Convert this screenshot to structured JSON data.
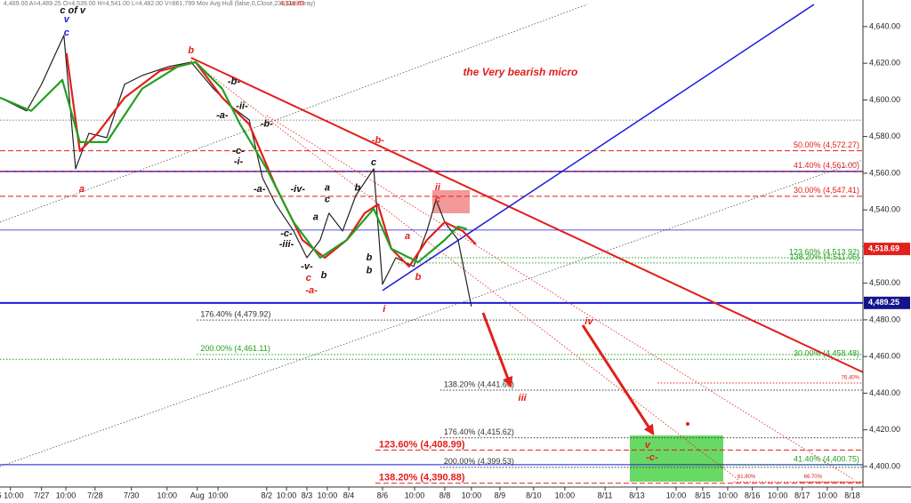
{
  "chart_data": {
    "type": "line",
    "header": "4,489.00  A=4,489.25  O=4,539.00  H=4,541.00  L=4,482.00  V=861,799  Mov Avg Hull (false,0,Close,233,DarkGray)",
    "header_price": "4,518.69",
    "xlim": [
      -0.27,
      26.33
    ],
    "ylim": [
      4388.8,
      4654.5
    ],
    "xticks": [
      {
        "value": 0.05,
        "label": "5 10:00"
      },
      {
        "value": 1.01,
        "label": "7/27"
      },
      {
        "value": 1.76,
        "label": "10:00"
      },
      {
        "value": 2.66,
        "label": "7/28"
      },
      {
        "value": 3.78,
        "label": "7/30"
      },
      {
        "value": 4.88,
        "label": "10:00"
      },
      {
        "value": 5.81,
        "label": "Aug"
      },
      {
        "value": 6.45,
        "label": "10:00"
      },
      {
        "value": 7.95,
        "label": "8/2"
      },
      {
        "value": 8.56,
        "label": "10:00"
      },
      {
        "value": 9.19,
        "label": "8/3"
      },
      {
        "value": 9.82,
        "label": "10:00"
      },
      {
        "value": 10.48,
        "label": "8/4"
      },
      {
        "value": 11.52,
        "label": "8/6"
      },
      {
        "value": 12.51,
        "label": "10:00"
      },
      {
        "value": 13.44,
        "label": "8/8"
      },
      {
        "value": 14.26,
        "label": "10:00"
      },
      {
        "value": 15.14,
        "label": "8/9"
      },
      {
        "value": 16.18,
        "label": "8/10"
      },
      {
        "value": 17.14,
        "label": "10:00"
      },
      {
        "value": 18.38,
        "label": "8/11"
      },
      {
        "value": 19.36,
        "label": "8/13"
      },
      {
        "value": 20.57,
        "label": "10:00"
      },
      {
        "value": 21.39,
        "label": "8/15"
      },
      {
        "value": 22.16,
        "label": "10:00"
      },
      {
        "value": 22.92,
        "label": "8/16"
      },
      {
        "value": 23.7,
        "label": "10:00"
      },
      {
        "value": 24.46,
        "label": "8/17"
      },
      {
        "value": 25.23,
        "label": "10:00"
      },
      {
        "value": 26.0,
        "label": "8/18"
      }
    ],
    "yticks": [
      {
        "value": 4400,
        "label": "4,400.00"
      },
      {
        "value": 4420,
        "label": "4,420.00"
      },
      {
        "value": 4440,
        "label": "4,440.00"
      },
      {
        "value": 4460,
        "label": "4,460.00"
      },
      {
        "value": 4480,
        "label": "4,480.00"
      },
      {
        "value": 4500,
        "label": "4,500.00"
      },
      {
        "value": 4520,
        "label": "4,520.00"
      },
      {
        "value": 4540,
        "label": "4,540.00"
      },
      {
        "value": 4560,
        "label": "4,560.00"
      },
      {
        "value": 4580,
        "label": "4,580.00"
      },
      {
        "value": 4600,
        "label": "4,600.00"
      },
      {
        "value": 4620,
        "label": "4,620.00"
      },
      {
        "value": 4640,
        "label": "4,640.00"
      }
    ],
    "series": [
      {
        "color": "#222222",
        "width": 1.2,
        "x": [
          -0.27,
          0.55,
          1.01,
          1.7,
          2.06,
          2.47,
          3.02,
          3.57,
          4.11,
          4.94,
          5.62,
          6.31,
          6.86,
          7.41,
          7.82,
          8.23,
          8.78,
          9.19,
          9.6,
          9.87,
          10.29,
          10.7,
          11.25,
          11.52,
          11.93,
          12.48,
          12.89,
          13.17,
          13.44,
          13.85,
          14.26
        ],
        "values": [
          4601.2,
          4594.0,
          4608.5,
          4635.2,
          4562.4,
          4581.8,
          4579.4,
          4608.5,
          4613.3,
          4618.2,
          4620.6,
          4606.1,
          4596.4,
          4589.1,
          4557.6,
          4543.0,
          4528.5,
          4513.9,
          4523.6,
          4538.2,
          4528.5,
          4547.9,
          4562.4,
          4499.4,
          4513.9,
          4509.1,
          4528.5,
          4545.5,
          4533.3,
          4523.6,
          4487.3
        ]
      },
      {
        "color": "#e0201c",
        "width": 2.2,
        "x": [
          1.78,
          2.19,
          2.74,
          3.57,
          4.66,
          5.76,
          6.58,
          7.41,
          8.23,
          9.05,
          9.74,
          10.42,
          10.97,
          11.38,
          11.79,
          12.34,
          12.89,
          13.44,
          13.99,
          14.4
        ],
        "values": [
          4625.5,
          4572.1,
          4581.8,
          4601.2,
          4615.8,
          4620.6,
          4601.2,
          4586.7,
          4552.7,
          4523.6,
          4513.9,
          4523.6,
          4538.2,
          4543.0,
          4518.8,
          4509.1,
          4523.6,
          4533.3,
          4528.5,
          4521.2
        ]
      },
      {
        "color": "#22a020",
        "width": 2.2,
        "x": [
          -0.27,
          0.69,
          1.65,
          2.19,
          3.02,
          4.11,
          5.21,
          5.76,
          6.58,
          7.13,
          7.95,
          8.78,
          9.6,
          10.42,
          11.25,
          11.79,
          12.62,
          13.44,
          13.85,
          14.12
        ],
        "values": [
          4601.2,
          4594.0,
          4610.9,
          4577.0,
          4577.0,
          4606.1,
          4618.2,
          4620.6,
          4606.1,
          4586.7,
          4562.4,
          4533.3,
          4513.9,
          4523.6,
          4540.6,
          4518.8,
          4511.5,
          4523.6,
          4530.9,
          4529.5
        ]
      }
    ],
    "trendlines": [
      {
        "color": "#e0201c",
        "width": 2,
        "style": "solid",
        "x": [
          5.62,
          26.33
        ],
        "y": [
          4623.0,
          4451.4
        ]
      },
      {
        "color": "#1a1adb",
        "width": 1.5,
        "style": "solid",
        "x": [
          11.52,
          24.82
        ],
        "y": [
          4496.0,
          4652.1
        ]
      },
      {
        "color": "#555555",
        "width": 0.8,
        "style": "dotted",
        "x": [
          -0.27,
          17.83
        ],
        "y": [
          4533.3,
          4652.1
        ]
      },
      {
        "color": "#555555",
        "width": 0.8,
        "style": "dotted",
        "x": [
          -0.27,
          26.33
        ],
        "y": [
          4400.0,
          4567.3
        ]
      },
      {
        "color": "#e0201c",
        "width": 0.8,
        "style": "dotted",
        "x": [
          5.62,
          22.49
        ],
        "y": [
          4621.6,
          4392.7
        ]
      },
      {
        "color": "#e0201c",
        "width": 0.8,
        "style": "dotted",
        "x": [
          7.95,
          26.06
        ],
        "y": [
          4591.5,
          4392.7
        ]
      }
    ],
    "hlines": [
      {
        "value": 4589.0,
        "color": "#555555",
        "width": 0.8,
        "style": "dotted"
      },
      {
        "value": 4561.0,
        "color": "#1a1adb",
        "width": 1.5,
        "style": "solid"
      },
      {
        "value": 4529.0,
        "color": "#1a1adb",
        "width": 0.8,
        "style": "solid"
      },
      {
        "value": 4489.25,
        "color": "#1a1adb",
        "width": 2,
        "style": "solid"
      },
      {
        "value": 4401.0,
        "color": "#1a1adb",
        "width": 1,
        "style": "solid"
      }
    ],
    "levels": [
      {
        "label": "50.00% (4,572.27)",
        "value": 4572.27,
        "color": "#e0201c",
        "style": "dashed",
        "label_at": "right",
        "from": -0.27
      },
      {
        "label": "41.40% (4,561.00)",
        "value": 4561.0,
        "color": "#e0201c",
        "style": "dashed",
        "label_at": "right",
        "from": -0.27
      },
      {
        "label": "30.00% (4,547.41)",
        "value": 4547.41,
        "color": "#e0201c",
        "style": "dashed",
        "label_at": "right",
        "from": -0.27
      },
      {
        "label": "123.60% (4,513.92)",
        "value": 4513.92,
        "color": "#22a020",
        "style": "dotted",
        "label_at": "right",
        "from": 12.0
      },
      {
        "label": "138.20% (4,511.05)",
        "value": 4511.05,
        "color": "#22a020",
        "style": "dotted",
        "label_at": "right",
        "from": 12.0
      },
      {
        "label": "176.40% (4,479.92)",
        "value": 4479.92,
        "color": "#333333",
        "style": "dotted",
        "label_at": "start",
        "from": 5.8
      },
      {
        "label": "200.00% (4,461.11)",
        "value": 4461.11,
        "color": "#22a020",
        "style": "dotted",
        "label_at": "start",
        "from": 5.8
      },
      {
        "label": "30.00% (4,458.48)",
        "value": 4458.48,
        "color": "#22a020",
        "style": "dotted",
        "label_at": "right",
        "from": -0.27
      },
      {
        "label": "76.40%",
        "value": 4445.5,
        "color": "#e0201c",
        "style": "dotted",
        "label_at": "right",
        "from": 20.0
      },
      {
        "label": "138.20% (4,441.66)",
        "value": 4441.66,
        "color": "#333333",
        "style": "dotted",
        "label_at": "start",
        "from": 13.3
      },
      {
        "label": "176.40% (4,415.62)",
        "value": 4415.62,
        "color": "#333333",
        "style": "dotted",
        "label_at": "start",
        "from": 13.3
      },
      {
        "label": "123.60% (4,408.99)",
        "value": 4408.99,
        "color": "#e0201c",
        "style": "dashed",
        "label_at": "start",
        "from": 11.3
      },
      {
        "label": "41.40% (4,400.75)",
        "value": 4400.75,
        "color": "#22a020",
        "style": "dotted",
        "label_at": "right",
        "from": 20.0
      },
      {
        "label": "200.00% (4,399.53)",
        "value": 4399.53,
        "color": "#333333",
        "style": "dotted",
        "label_at": "start",
        "from": 13.3
      },
      {
        "label": "138.20% (4,390.88)",
        "value": 4390.88,
        "color": "#e0201c",
        "style": "dashed",
        "label_at": "start",
        "from": 11.3
      },
      {
        "label": "61.80%",
        "value": 4391.5,
        "color": "#e0201c",
        "style": "dotted",
        "label_at": "start",
        "from": 22.35
      },
      {
        "label": "66.70%",
        "value": 4391.5,
        "color": "#e0201c",
        "style": "dotted",
        "label_at": "start",
        "from": 24.4
      }
    ],
    "price_tags": [
      {
        "value": 4518.69,
        "label": "4,518.69",
        "color": "#e0201c"
      },
      {
        "value": 4489.25,
        "label": "4,489.25",
        "color": "#14148c"
      }
    ],
    "annotations": [
      {
        "text": "c of v",
        "x": 1.97,
        "y": 4648.7,
        "color": "#111111"
      },
      {
        "text": "v",
        "x": 1.78,
        "y": 4643.9,
        "color": "#1a1adb"
      },
      {
        "text": "c",
        "x": 1.78,
        "y": 4636.6,
        "color": "#1a1adb"
      },
      {
        "text": "b",
        "x": 5.62,
        "y": 4626.9,
        "color": "#e0201c"
      },
      {
        "text": "a",
        "x": 2.25,
        "y": 4551.3,
        "color": "#e0201c"
      },
      {
        "text": "the Very  bearish micro",
        "x": 15.77,
        "y": 4614.8,
        "color": "#e0201c"
      },
      {
        "text": "-b-",
        "x": 11.38,
        "y": 4577.9,
        "color": "#e0201c"
      },
      {
        "text": "c",
        "x": 11.25,
        "y": 4565.8,
        "color": "#111111"
      },
      {
        "text": "ii",
        "x": 13.22,
        "y": 4552.2,
        "color": "#e0201c"
      },
      {
        "text": "c",
        "x": 13.22,
        "y": 4545.5,
        "color": "#e0201c"
      },
      {
        "text": "a",
        "x": 12.29,
        "y": 4525.6,
        "color": "#e0201c"
      },
      {
        "text": "b",
        "x": 12.62,
        "y": 4503.3,
        "color": "#e0201c"
      },
      {
        "text": "i",
        "x": 11.57,
        "y": 4485.8,
        "color": "#e0201c"
      },
      {
        "text": "iv",
        "x": 17.88,
        "y": 4479.0,
        "color": "#e0201c"
      },
      {
        "text": "iii",
        "x": 15.83,
        "y": 4437.3,
        "color": "#e0201c"
      },
      {
        "text": "v",
        "x": 19.69,
        "y": 4411.6,
        "color": "#e0201c"
      },
      {
        "text": "-c-",
        "x": 19.83,
        "y": 4404.8,
        "color": "#e0201c"
      },
      {
        "text": "-a-",
        "x": 9.33,
        "y": 4496.0,
        "color": "#e0201c"
      },
      {
        "text": "c",
        "x": 9.24,
        "y": 4502.8,
        "color": "#e0201c"
      },
      {
        "text": "-b-",
        "x": 6.94,
        "y": 4609.9,
        "color": "#111111"
      },
      {
        "text": "-ii-",
        "x": 7.19,
        "y": 4596.4,
        "color": "#111111"
      },
      {
        "text": "-a-",
        "x": 6.58,
        "y": 4591.5,
        "color": "#111111"
      },
      {
        "text": "-b-",
        "x": 7.95,
        "y": 4586.7,
        "color": "#111111"
      },
      {
        "text": "-c-",
        "x": 7.08,
        "y": 4572.1,
        "color": "#111111"
      },
      {
        "text": "-i-",
        "x": 7.08,
        "y": 4566.3,
        "color": "#111111"
      },
      {
        "text": "-a-",
        "x": 7.73,
        "y": 4551.3,
        "color": "#111111"
      },
      {
        "text": "-iv-",
        "x": 8.91,
        "y": 4551.3,
        "color": "#111111"
      },
      {
        "text": "a",
        "x": 9.82,
        "y": 4551.8,
        "color": "#111111"
      },
      {
        "text": "c",
        "x": 9.82,
        "y": 4545.5,
        "color": "#111111"
      },
      {
        "text": "b",
        "x": 10.75,
        "y": 4551.8,
        "color": "#111111"
      },
      {
        "text": "a",
        "x": 9.46,
        "y": 4535.8,
        "color": "#111111"
      },
      {
        "text": "-c-",
        "x": 8.56,
        "y": 4527.0,
        "color": "#111111"
      },
      {
        "text": "-iii-",
        "x": 8.56,
        "y": 4521.2,
        "color": "#111111"
      },
      {
        "text": "-v-",
        "x": 9.19,
        "y": 4509.1,
        "color": "#111111"
      },
      {
        "text": "b",
        "x": 9.71,
        "y": 4504.2,
        "color": "#111111"
      },
      {
        "text": "b",
        "x": 11.11,
        "y": 4513.9,
        "color": "#111111"
      },
      {
        "text": "b",
        "x": 11.11,
        "y": 4506.7,
        "color": "#111111"
      }
    ]
  }
}
